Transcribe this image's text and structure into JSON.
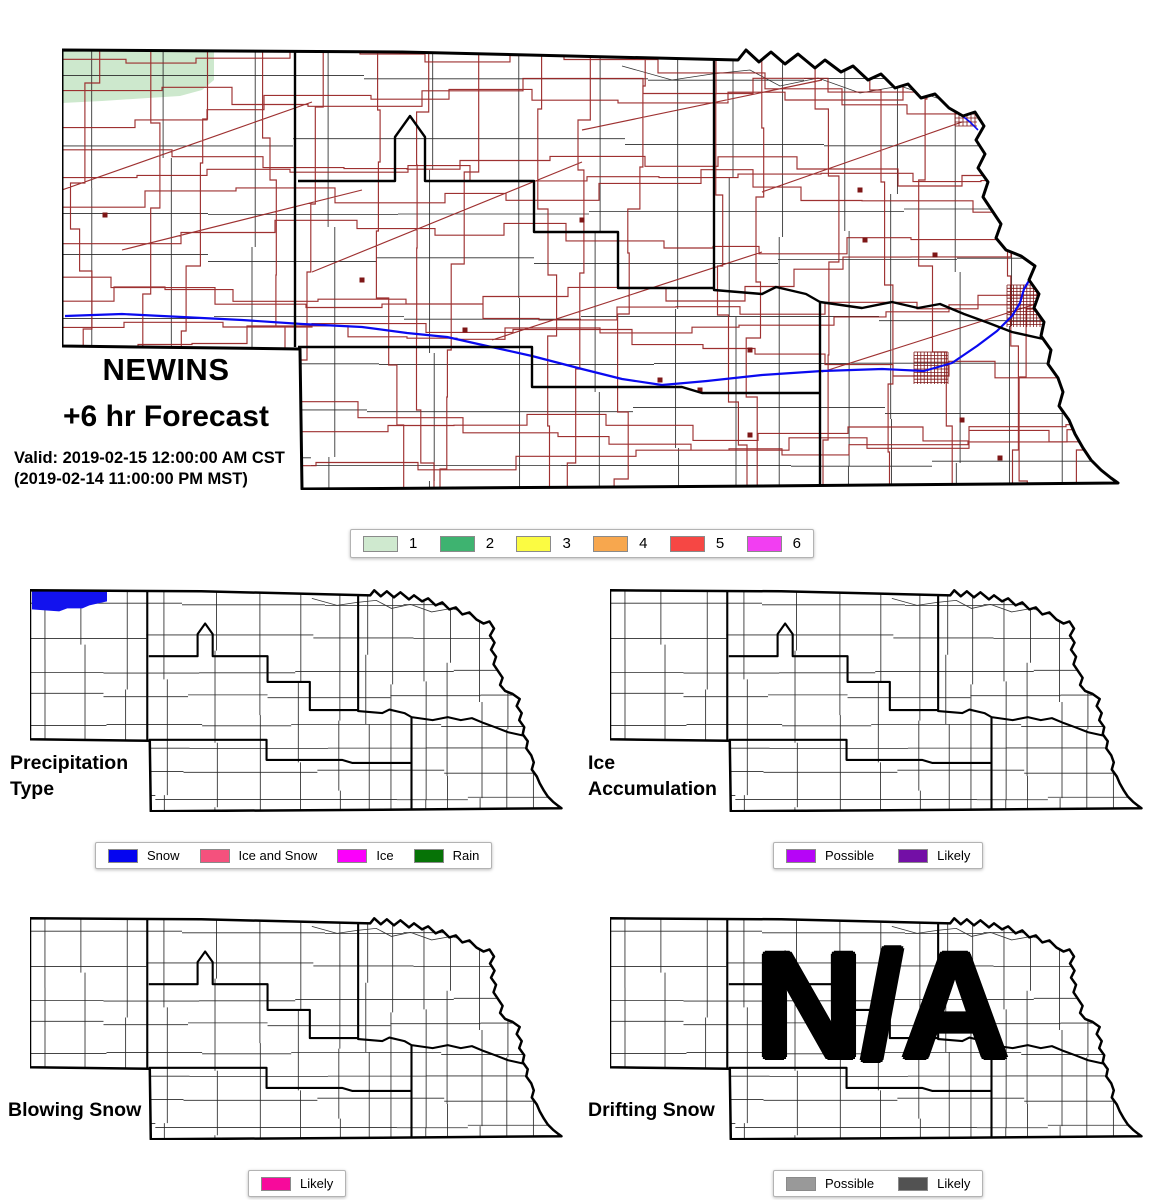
{
  "header": {
    "title_line1": "NEWINS",
    "title_line2": "+6 hr Forecast",
    "valid_line1": "Valid: 2019-02-15 12:00:00 AM CST",
    "valid_line2": "(2019-02-14 11:00:00 PM MST)"
  },
  "main_legend": {
    "items": [
      {
        "label": "1",
        "color": "#cfe9cf"
      },
      {
        "label": "2",
        "color": "#3eb370"
      },
      {
        "label": "3",
        "color": "#fbfb42"
      },
      {
        "label": "4",
        "color": "#f7a74e"
      },
      {
        "label": "5",
        "color": "#f64744"
      },
      {
        "label": "6",
        "color": "#f23ef2"
      }
    ]
  },
  "panels": {
    "precip": {
      "title_line1": "Precipitation",
      "title_line2": "Type",
      "legend": [
        {
          "label": "Snow",
          "color": "#0505f0"
        },
        {
          "label": "Ice and Snow",
          "color": "#f4517d"
        },
        {
          "label": "Ice",
          "color": "#fb00fb"
        },
        {
          "label": "Rain",
          "color": "#067306"
        }
      ]
    },
    "ice": {
      "title_line1": "Ice",
      "title_line2": "Accumulation",
      "legend": [
        {
          "label": "Possible",
          "color": "#b605f7"
        },
        {
          "label": "Likely",
          "color": "#730fa6"
        }
      ]
    },
    "blowing": {
      "title_line1": "Blowing Snow",
      "title_line2": "",
      "legend": [
        {
          "label": "Likely",
          "color": "#f70a9b"
        }
      ]
    },
    "drifting": {
      "title_line1": "Drifting Snow",
      "title_line2": "",
      "na_label": "N/A",
      "legend": [
        {
          "label": "Possible",
          "color": "#999999"
        },
        {
          "label": "Likely",
          "color": "#525252"
        }
      ]
    }
  },
  "map_colors": {
    "outline": "#000000",
    "county_line": "#2b2b2b",
    "district_line": "#000000",
    "road": "#992626",
    "interstate": "#0a0af0",
    "river": "#333333",
    "city": "#7d1616",
    "main_alert_patch": "#cde8cd",
    "snow_patch": "#1212ee"
  }
}
